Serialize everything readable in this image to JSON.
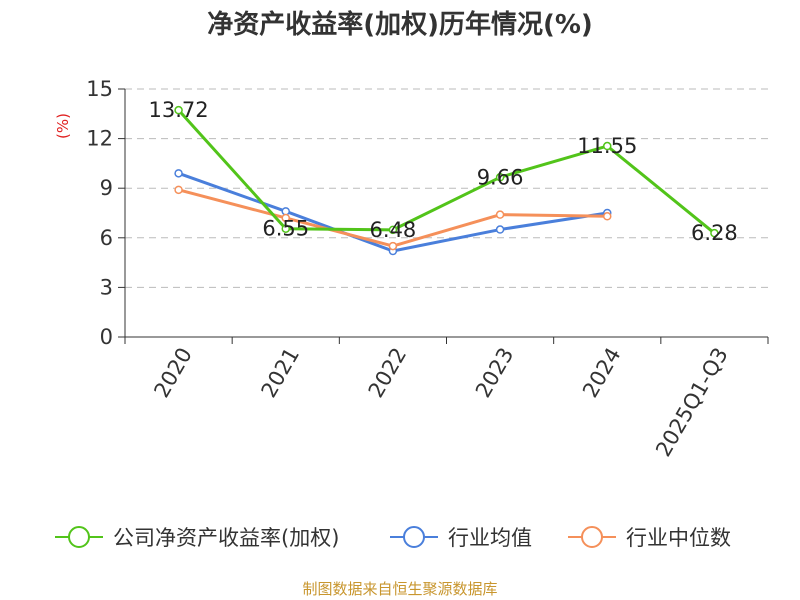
{
  "title": "净资产收益率(加权)历年情况(%)",
  "footer": "制图数据来自恒生聚源数据库",
  "chart_data": {
    "type": "line",
    "title": "净资产收益率(加权)历年情况(%)",
    "xlabel": "",
    "ylabel": "(%)",
    "categories": [
      "2020",
      "2021",
      "2022",
      "2023",
      "2024",
      "2025Q1-Q3"
    ],
    "yticks": [
      0,
      3,
      6,
      9,
      12,
      15
    ],
    "ylim": [
      0,
      15
    ],
    "grid": true,
    "legend_position": "bottom",
    "series": [
      {
        "name": "公司净资产收益率(加权)",
        "color": "#52c41a",
        "values": [
          13.72,
          6.55,
          6.48,
          9.66,
          11.55,
          6.28
        ],
        "data_labels": [
          "13.72",
          "6.55",
          "6.48",
          "9.66",
          "11.55",
          "6.28"
        ]
      },
      {
        "name": "行业均值",
        "color": "#4a7fdb",
        "values": [
          9.9,
          7.6,
          5.2,
          6.5,
          7.5,
          null
        ]
      },
      {
        "name": "行业中位数",
        "color": "#f5905a",
        "values": [
          8.9,
          7.2,
          5.5,
          7.4,
          7.3,
          null
        ]
      }
    ]
  }
}
